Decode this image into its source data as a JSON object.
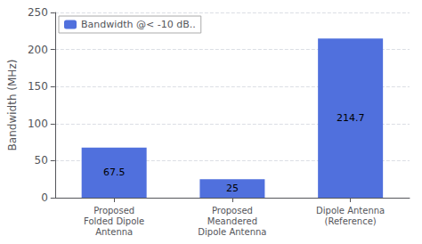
{
  "chart_data": {
    "type": "bar",
    "categories": [
      "Proposed\nFolded Dipole\nAntenna",
      "Proposed\nMeandered\nDipole Antenna",
      "Dipole Antenna\n(Reference)"
    ],
    "series": [
      {
        "name": "Bandwidth @< -10 dB..",
        "values": [
          67.5,
          25,
          214.7
        ]
      }
    ],
    "ylabel": "Bandwidth (MHz)",
    "ylim": [
      0,
      250
    ],
    "yticks": [
      0,
      50,
      100,
      150,
      200,
      250
    ],
    "grid": true,
    "legend": "upper left",
    "data_labels": true
  }
}
